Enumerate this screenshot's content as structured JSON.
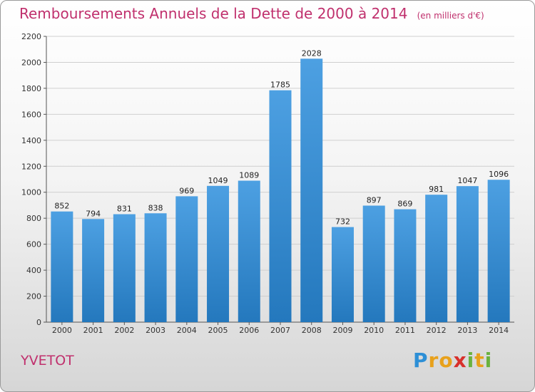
{
  "chart_data": {
    "type": "bar",
    "title": "Remboursements Annuels de la Dette de 2000 à 2014",
    "subtitle": "(en milliers d'€)",
    "categories": [
      "2000",
      "2001",
      "2002",
      "2003",
      "2004",
      "2005",
      "2006",
      "2007",
      "2008",
      "2009",
      "2010",
      "2011",
      "2012",
      "2013",
      "2014"
    ],
    "values": [
      852,
      794,
      831,
      838,
      969,
      1049,
      1089,
      1785,
      2028,
      732,
      897,
      869,
      981,
      1047,
      1096
    ],
    "ylim": [
      0,
      2200
    ],
    "yticks": [
      0,
      200,
      400,
      600,
      800,
      1000,
      1200,
      1400,
      1600,
      1800,
      2000,
      2200
    ],
    "grid": true,
    "bar_color": "#4da0e2",
    "bar_color_dark": "#2478bd",
    "grid_color": "#cfcfcf"
  },
  "footer": {
    "commune": "YVETOT",
    "logo_letters": [
      {
        "ch": "P",
        "color": "#2d8fd6"
      },
      {
        "ch": "r",
        "color": "#e8a11c"
      },
      {
        "ch": "o",
        "color": "#e8a11c"
      },
      {
        "ch": "x",
        "color": "#d8302b"
      },
      {
        "ch": "i",
        "color": "#6ab23e"
      },
      {
        "ch": "t",
        "color": "#e8a11c"
      },
      {
        "ch": "i",
        "color": "#6ab23e"
      }
    ]
  }
}
